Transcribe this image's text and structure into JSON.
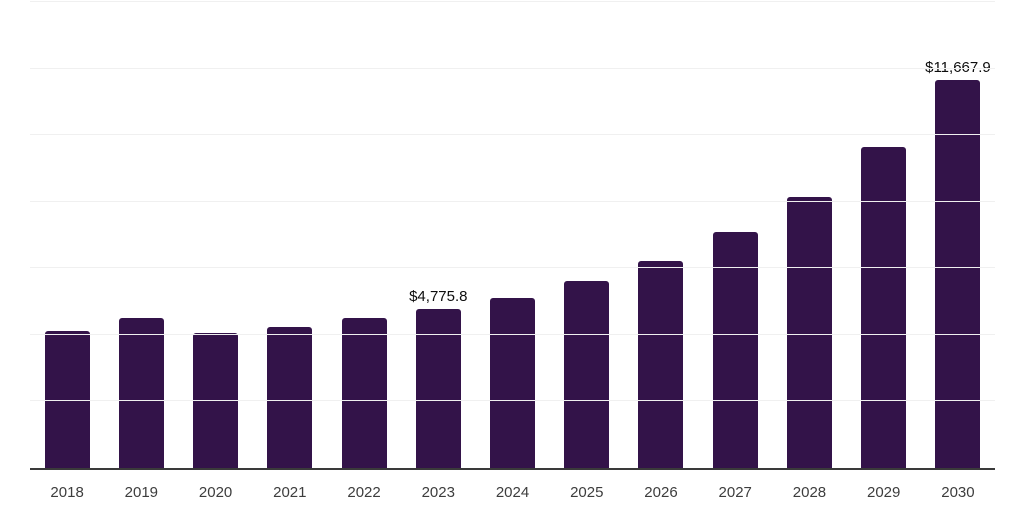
{
  "chart_data": {
    "type": "bar",
    "title": "",
    "xlabel": "",
    "ylabel": "",
    "categories": [
      "2018",
      "2019",
      "2020",
      "2021",
      "2022",
      "2023",
      "2024",
      "2025",
      "2026",
      "2027",
      "2028",
      "2029",
      "2030"
    ],
    "values": [
      4120,
      4500,
      4060,
      4240,
      4520,
      4775.8,
      5120,
      5620,
      6230,
      7090,
      8140,
      9630,
      11667.9
    ],
    "data_labels": [
      null,
      null,
      null,
      null,
      null,
      "$4,775.8",
      null,
      null,
      null,
      null,
      null,
      null,
      "$11,667.9"
    ],
    "ylim": [
      0,
      14000
    ],
    "grid_step": 2000,
    "layout": {
      "grid": "horizontal",
      "legend": "none",
      "y_axis_tick_labels": "hidden",
      "labeled_points": [
        "2023",
        "2030"
      ]
    },
    "colors": {
      "bar": "#331349",
      "axis": "#3a3a3a",
      "grid": "#f0f0f0",
      "tick_label": "#3d3d3d",
      "value_label": "#0d0d0d",
      "background": "#ffffff"
    }
  }
}
